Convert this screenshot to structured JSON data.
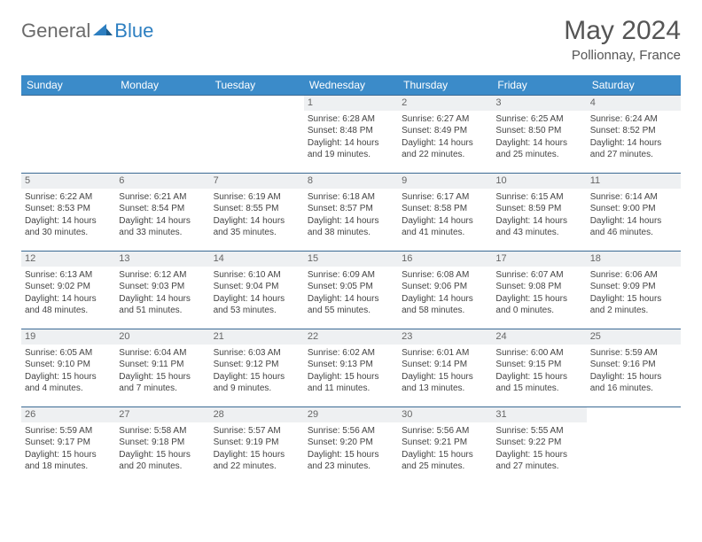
{
  "brand": {
    "part1": "General",
    "part2": "Blue"
  },
  "title": "May 2024",
  "location": "Pollionnay, France",
  "colors": {
    "header_bg": "#3b8bc9",
    "header_text": "#ffffff",
    "border": "#3b6a94",
    "daynum_bg": "#eef0f2",
    "text": "#444444",
    "logo_gray": "#6b6b6b",
    "logo_blue": "#2d7fc1"
  },
  "day_names": [
    "Sunday",
    "Monday",
    "Tuesday",
    "Wednesday",
    "Thursday",
    "Friday",
    "Saturday"
  ],
  "weeks": [
    [
      {
        "n": "",
        "sr": "",
        "ss": "",
        "dl": ""
      },
      {
        "n": "",
        "sr": "",
        "ss": "",
        "dl": ""
      },
      {
        "n": "",
        "sr": "",
        "ss": "",
        "dl": ""
      },
      {
        "n": "1",
        "sr": "6:28 AM",
        "ss": "8:48 PM",
        "dl": "14 hours and 19 minutes."
      },
      {
        "n": "2",
        "sr": "6:27 AM",
        "ss": "8:49 PM",
        "dl": "14 hours and 22 minutes."
      },
      {
        "n": "3",
        "sr": "6:25 AM",
        "ss": "8:50 PM",
        "dl": "14 hours and 25 minutes."
      },
      {
        "n": "4",
        "sr": "6:24 AM",
        "ss": "8:52 PM",
        "dl": "14 hours and 27 minutes."
      }
    ],
    [
      {
        "n": "5",
        "sr": "6:22 AM",
        "ss": "8:53 PM",
        "dl": "14 hours and 30 minutes."
      },
      {
        "n": "6",
        "sr": "6:21 AM",
        "ss": "8:54 PM",
        "dl": "14 hours and 33 minutes."
      },
      {
        "n": "7",
        "sr": "6:19 AM",
        "ss": "8:55 PM",
        "dl": "14 hours and 35 minutes."
      },
      {
        "n": "8",
        "sr": "6:18 AM",
        "ss": "8:57 PM",
        "dl": "14 hours and 38 minutes."
      },
      {
        "n": "9",
        "sr": "6:17 AM",
        "ss": "8:58 PM",
        "dl": "14 hours and 41 minutes."
      },
      {
        "n": "10",
        "sr": "6:15 AM",
        "ss": "8:59 PM",
        "dl": "14 hours and 43 minutes."
      },
      {
        "n": "11",
        "sr": "6:14 AM",
        "ss": "9:00 PM",
        "dl": "14 hours and 46 minutes."
      }
    ],
    [
      {
        "n": "12",
        "sr": "6:13 AM",
        "ss": "9:02 PM",
        "dl": "14 hours and 48 minutes."
      },
      {
        "n": "13",
        "sr": "6:12 AM",
        "ss": "9:03 PM",
        "dl": "14 hours and 51 minutes."
      },
      {
        "n": "14",
        "sr": "6:10 AM",
        "ss": "9:04 PM",
        "dl": "14 hours and 53 minutes."
      },
      {
        "n": "15",
        "sr": "6:09 AM",
        "ss": "9:05 PM",
        "dl": "14 hours and 55 minutes."
      },
      {
        "n": "16",
        "sr": "6:08 AM",
        "ss": "9:06 PM",
        "dl": "14 hours and 58 minutes."
      },
      {
        "n": "17",
        "sr": "6:07 AM",
        "ss": "9:08 PM",
        "dl": "15 hours and 0 minutes."
      },
      {
        "n": "18",
        "sr": "6:06 AM",
        "ss": "9:09 PM",
        "dl": "15 hours and 2 minutes."
      }
    ],
    [
      {
        "n": "19",
        "sr": "6:05 AM",
        "ss": "9:10 PM",
        "dl": "15 hours and 4 minutes."
      },
      {
        "n": "20",
        "sr": "6:04 AM",
        "ss": "9:11 PM",
        "dl": "15 hours and 7 minutes."
      },
      {
        "n": "21",
        "sr": "6:03 AM",
        "ss": "9:12 PM",
        "dl": "15 hours and 9 minutes."
      },
      {
        "n": "22",
        "sr": "6:02 AM",
        "ss": "9:13 PM",
        "dl": "15 hours and 11 minutes."
      },
      {
        "n": "23",
        "sr": "6:01 AM",
        "ss": "9:14 PM",
        "dl": "15 hours and 13 minutes."
      },
      {
        "n": "24",
        "sr": "6:00 AM",
        "ss": "9:15 PM",
        "dl": "15 hours and 15 minutes."
      },
      {
        "n": "25",
        "sr": "5:59 AM",
        "ss": "9:16 PM",
        "dl": "15 hours and 16 minutes."
      }
    ],
    [
      {
        "n": "26",
        "sr": "5:59 AM",
        "ss": "9:17 PM",
        "dl": "15 hours and 18 minutes."
      },
      {
        "n": "27",
        "sr": "5:58 AM",
        "ss": "9:18 PM",
        "dl": "15 hours and 20 minutes."
      },
      {
        "n": "28",
        "sr": "5:57 AM",
        "ss": "9:19 PM",
        "dl": "15 hours and 22 minutes."
      },
      {
        "n": "29",
        "sr": "5:56 AM",
        "ss": "9:20 PM",
        "dl": "15 hours and 23 minutes."
      },
      {
        "n": "30",
        "sr": "5:56 AM",
        "ss": "9:21 PM",
        "dl": "15 hours and 25 minutes."
      },
      {
        "n": "31",
        "sr": "5:55 AM",
        "ss": "9:22 PM",
        "dl": "15 hours and 27 minutes."
      },
      {
        "n": "",
        "sr": "",
        "ss": "",
        "dl": ""
      }
    ]
  ],
  "labels": {
    "sunrise": "Sunrise:",
    "sunset": "Sunset:",
    "daylight": "Daylight:"
  }
}
